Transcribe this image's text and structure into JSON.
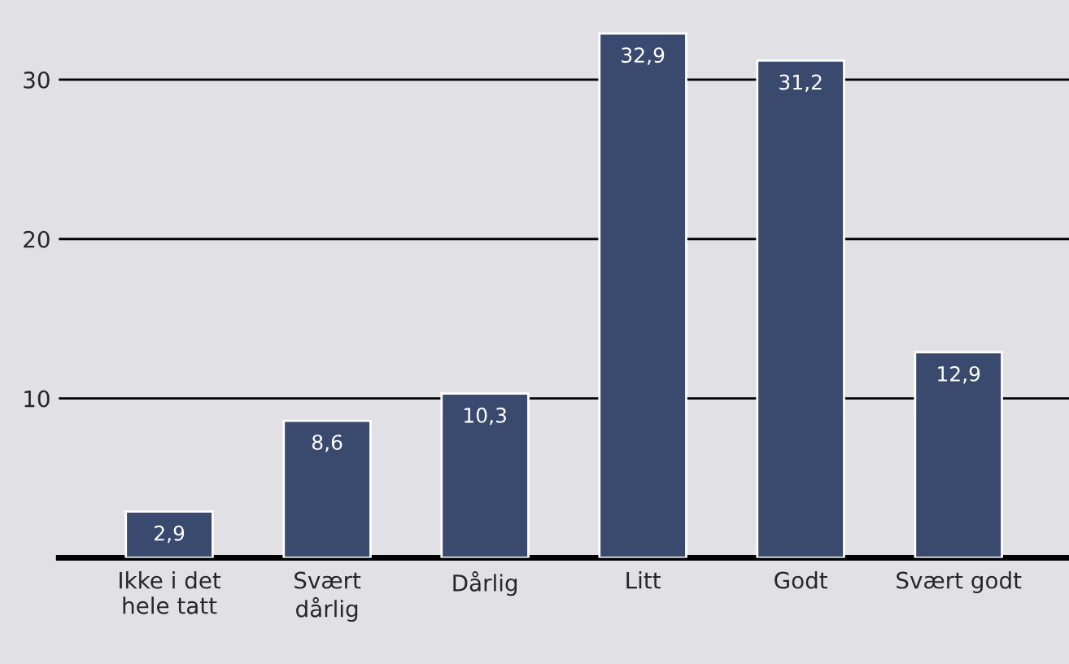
{
  "chart_data": {
    "type": "bar",
    "categories": [
      "Ikke i det\nhele tatt",
      "Svært\ndårlig",
      "Dårlig",
      "Litt",
      "Godt",
      "Svært godt"
    ],
    "values": [
      2.9,
      8.6,
      10.3,
      32.9,
      31.2,
      12.9
    ],
    "value_labels": [
      "2,9",
      "8,6",
      "10,3",
      "32,9",
      "31,2",
      "12,9"
    ],
    "color": "#3a4a6e",
    "ylim": [
      0,
      35
    ],
    "yticks": [
      10,
      20,
      30
    ],
    "grid": "y",
    "legend": false
  }
}
